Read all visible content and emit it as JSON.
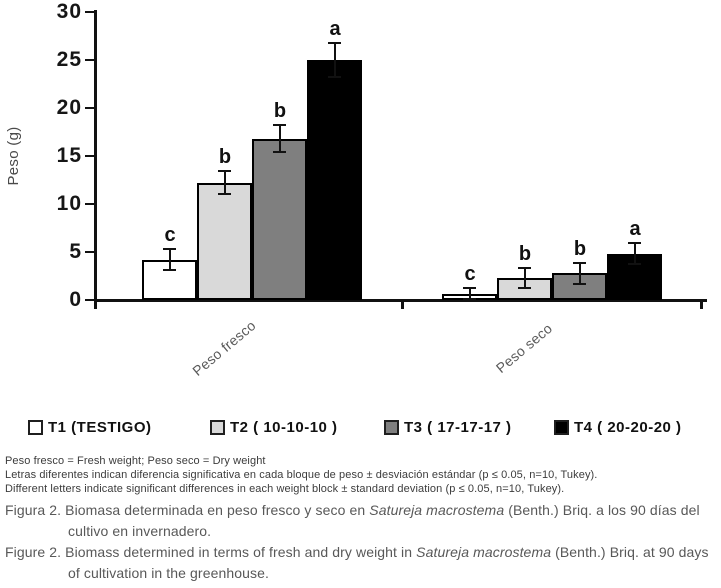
{
  "figure": {
    "footnotes": [
      "Peso fresco = Fresh weight; Peso seco = Dry weight",
      "Letras diferentes indican diferencia significativa en cada bloque de peso ± desviación estándar (p ≤ 0.05, n=10, Tukey).",
      "Different letters indicate significant differences in each weight block ± standard deviation (p ≤ 0.05, n=10, Tukey)."
    ],
    "captions": [
      {
        "prefix": "Figura 2. Biomasa determinada en peso fresco y seco en ",
        "italic": "Satureja macrostema",
        "suffix": " (Benth.) Briq. a los 90 días del cultivo en invernadero."
      },
      {
        "prefix": "Figure 2. Biomass determined in terms of fresh and dry weight in ",
        "italic": "Satureja macrostema",
        "suffix": " (Benth.) Briq. at 90 days of cultivation in the greenhouse."
      }
    ]
  },
  "chart_data": {
    "type": "bar",
    "title": "",
    "xlabel": "",
    "ylabel": "Peso (g)",
    "ylim": [
      0,
      30
    ],
    "yticks": [
      0,
      5,
      10,
      15,
      20,
      25,
      30
    ],
    "grid": false,
    "legend_position": "bottom",
    "categories": [
      "Peso fresco",
      "Peso seco"
    ],
    "series": [
      {
        "name": "T1 (TESTIGO)",
        "color": "#ffffff",
        "values": [
          4.2,
          0.6
        ],
        "errors": [
          1.1,
          0.6
        ],
        "letters": [
          "c",
          "c"
        ]
      },
      {
        "name": "T2 ( 10-10-10 )",
        "color": "#d9d9d9",
        "values": [
          12.2,
          2.3
        ],
        "errors": [
          1.2,
          1.0
        ],
        "letters": [
          "b",
          "b"
        ]
      },
      {
        "name": "T3 ( 17-17-17 )",
        "color": "#7f7f7f",
        "values": [
          16.8,
          2.8
        ],
        "errors": [
          1.4,
          1.1
        ],
        "letters": [
          "b",
          "b"
        ]
      },
      {
        "name": "T4 ( 20-20-20 )",
        "color": "#000000",
        "values": [
          25.0,
          4.8
        ],
        "errors": [
          1.8,
          1.1
        ],
        "letters": [
          "a",
          "a"
        ]
      }
    ]
  }
}
